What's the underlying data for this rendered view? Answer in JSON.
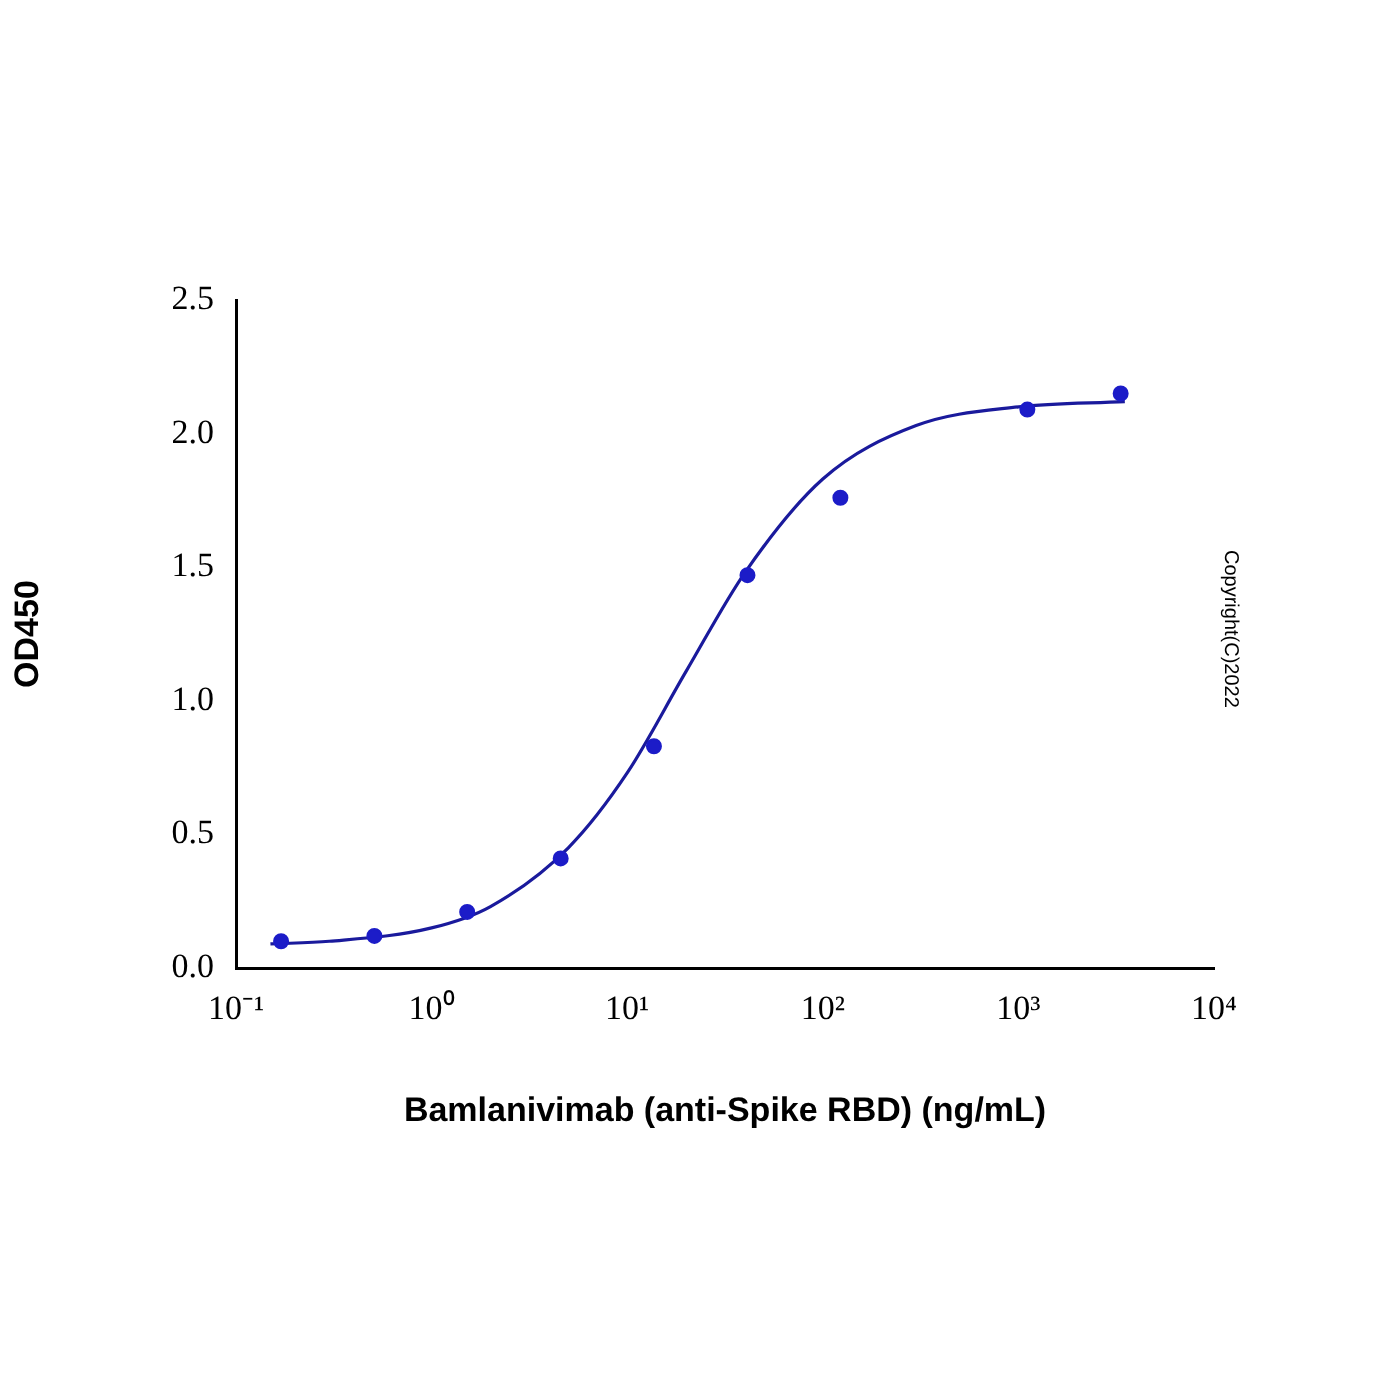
{
  "chart_data": {
    "type": "scatter",
    "xlabel": "Bamlanivimab (anti-Spike RBD) (ng/mL)",
    "ylabel": "OD450",
    "log": "x",
    "grid": false,
    "legend": false,
    "marker": "circle",
    "xlim": [
      0.1,
      10000
    ],
    "xticks": [
      {
        "value": 0.1,
        "label": "10⁻¹"
      },
      {
        "value": 1,
        "label": "10⁰"
      },
      {
        "value": 10,
        "label": "10¹"
      },
      {
        "value": 100,
        "label": "10²"
      },
      {
        "value": 1000,
        "label": "10³"
      },
      {
        "value": 10000,
        "label": "10⁴"
      }
    ],
    "ylim": [
      0,
      2.5
    ],
    "yticks": [
      {
        "value": 0,
        "label": "0.0"
      },
      {
        "value": 0.5,
        "label": "0.5"
      },
      {
        "value": 1,
        "label": "1.0"
      },
      {
        "value": 1.5,
        "label": "1.5"
      },
      {
        "value": 2,
        "label": "2.0"
      },
      {
        "value": 2.5,
        "label": "2.5"
      }
    ],
    "series": [
      {
        "color": "#1c1cc8",
        "x": [
          0.17,
          0.51,
          1.52,
          4.57,
          13.7,
          41.2,
          123,
          1111,
          3333
        ],
        "values": [
          0.1,
          0.12,
          0.21,
          0.41,
          0.83,
          1.47,
          1.76,
          2.09,
          2.15
        ]
      },
      {
        "type": "line",
        "marker": "none",
        "color": "#1a1a9c",
        "x": [
          0.15,
          0.3,
          1,
          2,
          5,
          10,
          20,
          40,
          100,
          300,
          1000,
          3500
        ],
        "values": [
          0.09,
          0.1,
          0.15,
          0.23,
          0.45,
          0.73,
          1.11,
          1.48,
          1.83,
          2.03,
          2.1,
          2.12
        ]
      }
    ],
    "annotations": [
      "Copyright(C)2022"
    ]
  }
}
